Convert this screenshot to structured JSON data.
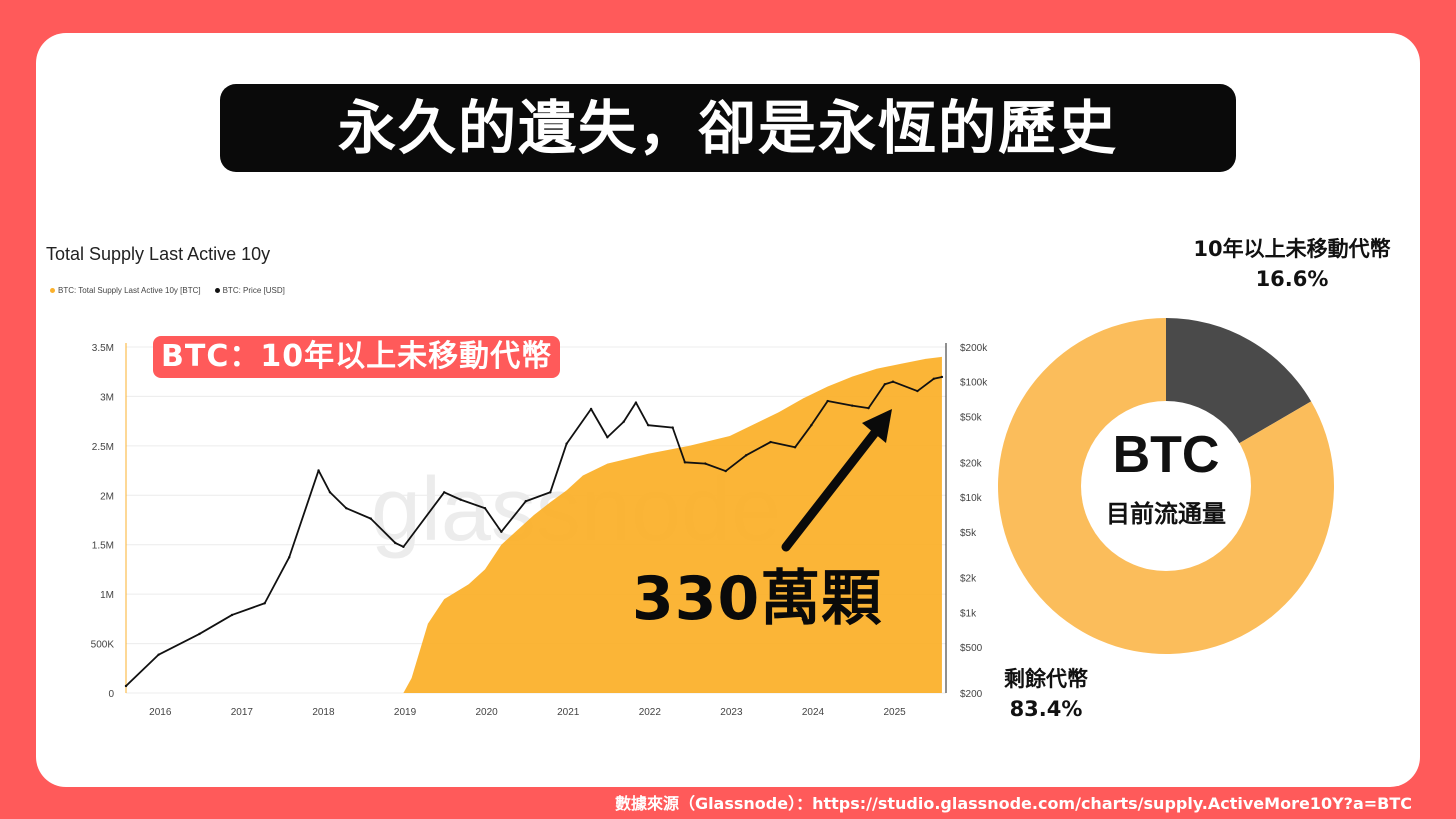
{
  "headline": "永久的遺失，卻是永恆的歷史",
  "chart_label": "BTC：10年以上未移動代幣",
  "annotation": "330萬顆",
  "donut": {
    "center_title": "BTC",
    "center_subtitle": "目前流通量",
    "slice_1_label": "10年以上未移動代幣",
    "slice_1_pct": "16.6%",
    "slice_2_label": "剩餘代幣",
    "slice_2_pct": "83.4%"
  },
  "source": "數據來源（Glassnode）：https://studio.glassnode.com/charts/supply.ActiveMore10Y?a=BTC",
  "chart_data": [
    {
      "type": "area",
      "title": "Total Supply Last Active 10y",
      "watermark": "glassnode",
      "legend": [
        "BTC: Total Supply Last Active 10y [BTC]",
        "BTC: Price [USD]"
      ],
      "colors": {
        "supply": "#fbb12c",
        "price": "#111111",
        "accent": "#ff5a5a"
      },
      "x_ticks": [
        "2016",
        "2017",
        "2018",
        "2019",
        "2020",
        "2021",
        "2022",
        "2023",
        "2024",
        "2025"
      ],
      "y_left_ticks": [
        "0",
        "500K",
        "1M",
        "1.5M",
        "2M",
        "2.5M",
        "3M",
        "3.5M"
      ],
      "y_left_range": [
        0,
        3500000
      ],
      "y_right_ticks": [
        "$200",
        "$500",
        "$1k",
        "$2k",
        "$5k",
        "$10k",
        "$20k",
        "$50k",
        "$100k",
        "$200k"
      ],
      "y_right_scale": "log",
      "y_right_range": [
        200,
        200000
      ],
      "series": [
        {
          "name": "BTC: Total Supply Last Active 10y [BTC]",
          "axis": "left",
          "x": [
            2015.6,
            2019.0,
            2019.1,
            2019.3,
            2019.5,
            2019.8,
            2020.0,
            2020.2,
            2020.4,
            2020.6,
            2020.8,
            2021.0,
            2021.2,
            2021.5,
            2022.0,
            2022.5,
            2023.0,
            2023.3,
            2023.6,
            2023.9,
            2024.2,
            2024.5,
            2024.8,
            2025.1,
            2025.4,
            2025.6
          ],
          "values": [
            0,
            0,
            150000,
            700000,
            950000,
            1100000,
            1250000,
            1500000,
            1650000,
            1800000,
            1930000,
            2050000,
            2200000,
            2320000,
            2420000,
            2500000,
            2600000,
            2720000,
            2840000,
            2980000,
            3100000,
            3200000,
            3280000,
            3330000,
            3380000,
            3400000
          ]
        },
        {
          "name": "BTC: Price [USD]",
          "axis": "right",
          "x": [
            2015.6,
            2016.0,
            2016.5,
            2016.9,
            2017.3,
            2017.6,
            2017.96,
            2018.1,
            2018.3,
            2018.6,
            2018.9,
            2019.0,
            2019.5,
            2019.7,
            2020.0,
            2020.2,
            2020.5,
            2020.8,
            2021.0,
            2021.3,
            2021.5,
            2021.7,
            2021.85,
            2022.0,
            2022.3,
            2022.45,
            2022.7,
            2022.95,
            2023.2,
            2023.5,
            2023.8,
            2024.0,
            2024.2,
            2024.5,
            2024.7,
            2024.9,
            2025.0,
            2025.3,
            2025.5,
            2025.6
          ],
          "values": [
            230,
            430,
            650,
            950,
            1200,
            3000,
            17000,
            11000,
            8000,
            6500,
            4000,
            3700,
            11000,
            9500,
            8000,
            5000,
            9200,
            11000,
            29000,
            58000,
            33000,
            45000,
            66000,
            42000,
            40000,
            20000,
            19500,
            16800,
            23000,
            30000,
            27000,
            42000,
            68000,
            62000,
            59000,
            95000,
            100000,
            83000,
            106000,
            110000
          ]
        }
      ]
    },
    {
      "type": "pie",
      "subtype": "donut",
      "categories": [
        "10年以上未移動代幣",
        "剩餘代幣"
      ],
      "values": [
        16.6,
        83.4
      ],
      "colors": [
        "#4a4a4a",
        "#fbbd5b"
      ]
    }
  ]
}
